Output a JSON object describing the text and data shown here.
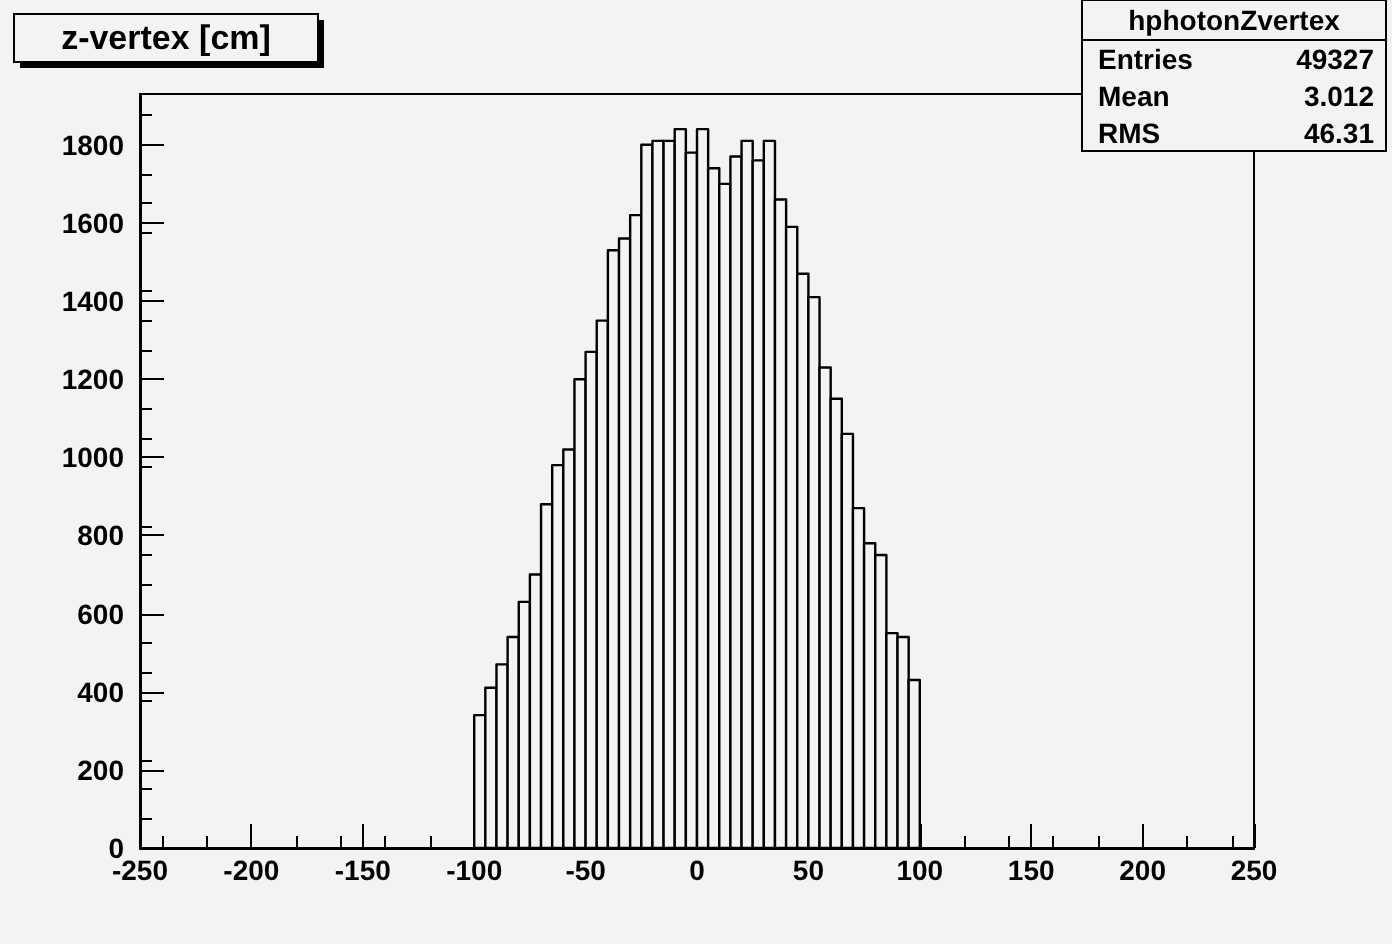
{
  "chart_data": {
    "type": "histogram",
    "title": "z-vertex [cm]",
    "bins": [
      -100,
      -95,
      -90,
      -85,
      -80,
      -75,
      -70,
      -65,
      -60,
      -55,
      -50,
      -45,
      -40,
      -35,
      -30,
      -25,
      -20,
      -15,
      -10,
      -5,
      0,
      5,
      10,
      15,
      20,
      25,
      30,
      35,
      40,
      45,
      50,
      55,
      60,
      65,
      70,
      75,
      80,
      85,
      90,
      95,
      100
    ],
    "values": [
      340,
      410,
      470,
      540,
      630,
      700,
      880,
      980,
      1020,
      1200,
      1270,
      1350,
      1530,
      1560,
      1620,
      1800,
      1810,
      1810,
      1840,
      1780,
      1840,
      1740,
      1700,
      1770,
      1810,
      1760,
      1810,
      1660,
      1590,
      1470,
      1410,
      1230,
      1150,
      1060,
      870,
      780,
      750,
      550,
      540,
      430
    ],
    "color": "#000000",
    "xlim": [
      -250,
      250
    ],
    "xticks": [
      -250,
      -200,
      -150,
      -100,
      -50,
      0,
      50,
      100,
      150,
      200,
      250
    ],
    "ylim": [
      0,
      1930
    ],
    "yticks": [
      0,
      200,
      400,
      600,
      800,
      1000,
      1200,
      1400,
      1600,
      1800
    ],
    "grid": false,
    "annotations": [
      "hphotonZvertex",
      "Entries",
      "49327",
      "Mean",
      "3.012",
      "RMS",
      "46.31"
    ]
  }
}
